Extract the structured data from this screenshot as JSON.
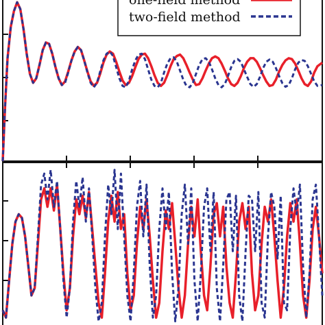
{
  "chart_data": [
    {
      "type": "line",
      "panel": "top",
      "title": "",
      "xlabel": "",
      "ylabel": "",
      "xlim": [
        0,
        100
      ],
      "ylim": [
        -2.6,
        1.0
      ],
      "grid": false,
      "legend": {
        "placement": "top-right",
        "entries": [
          "one-field method",
          "two-field method"
        ]
      },
      "series": [
        {
          "name": "one-field method",
          "color": "#e8202a",
          "style": "solid",
          "x": [
            0,
            0.7,
            1.5,
            2.5,
            3.5,
            4.5,
            5.5,
            6.5,
            7.5,
            8.5,
            9.5,
            10.5,
            11.5,
            12.5,
            13.5,
            14.5,
            15.5,
            16.5,
            17.5,
            18.5,
            19.5,
            20.5,
            21.5,
            22.5,
            23.5,
            24.5,
            25.5,
            26.5,
            27.5,
            28.5,
            29.5,
            30.5,
            31.5,
            32.5,
            33.5,
            34.5,
            35.5,
            36.5,
            37.5,
            38.5,
            39.5,
            40.5,
            41.5,
            42.5,
            43.5,
            44.5,
            45.5,
            46.5,
            47.5,
            48.5,
            49.5,
            50.5,
            51.5,
            52.5,
            53.5,
            54.5,
            55.5,
            56.5,
            57.5,
            58.5,
            59.5,
            60.5,
            61.5,
            62.5,
            63.5,
            64.5,
            65.5,
            66.5,
            67.5,
            68.5,
            69.5,
            70.5,
            71.5,
            72.5,
            73.5,
            74.5,
            75.5,
            76.5,
            77.5,
            78.5,
            79.5,
            80.5,
            81.5,
            82.5,
            83.5,
            84.5,
            85.5,
            86.5,
            87.5,
            88.5,
            89.5,
            90.5,
            91.5,
            92.5,
            93.5,
            94.5,
            95.5,
            96.5,
            97.5,
            98.5,
            100
          ],
          "values": [
            -2.6,
            -1.4,
            -0.3,
            0.4,
            0.75,
            0.95,
            0.8,
            0.35,
            -0.2,
            -0.65,
            -0.85,
            -0.75,
            -0.45,
            -0.12,
            0.05,
            0.02,
            -0.2,
            -0.5,
            -0.75,
            -0.9,
            -0.82,
            -0.6,
            -0.35,
            -0.15,
            -0.05,
            -0.12,
            -0.35,
            -0.6,
            -0.82,
            -0.92,
            -0.85,
            -0.65,
            -0.4,
            -0.22,
            -0.15,
            -0.2,
            -0.38,
            -0.6,
            -0.8,
            -0.9,
            -0.85,
            -0.7,
            -0.5,
            -0.32,
            -0.22,
            -0.2,
            -0.3,
            -0.48,
            -0.68,
            -0.85,
            -0.92,
            -0.85,
            -0.68,
            -0.48,
            -0.32,
            -0.25,
            -0.22,
            -0.3,
            -0.45,
            -0.62,
            -0.78,
            -0.9,
            -0.88,
            -0.75,
            -0.58,
            -0.42,
            -0.3,
            -0.26,
            -0.3,
            -0.42,
            -0.58,
            -0.75,
            -0.88,
            -0.92,
            -0.85,
            -0.7,
            -0.52,
            -0.38,
            -0.3,
            -0.3,
            -0.38,
            -0.52,
            -0.68,
            -0.82,
            -0.92,
            -0.9,
            -0.78,
            -0.6,
            -0.45,
            -0.35,
            -0.3,
            -0.32,
            -0.42,
            -0.58,
            -0.75,
            -0.88,
            -0.92,
            -0.82,
            -0.62,
            -0.48,
            -0.4
          ]
        },
        {
          "name": "two-field method",
          "color": "#2a3590",
          "style": "dashed",
          "x": [
            0,
            0.7,
            1.5,
            2.5,
            3.5,
            4.5,
            5.5,
            6.5,
            7.5,
            8.5,
            9.5,
            10.5,
            11.5,
            12.5,
            13.5,
            14.5,
            15.5,
            16.5,
            17.5,
            18.5,
            19.5,
            20.5,
            21.5,
            22.5,
            23.5,
            24.5,
            25.5,
            26.5,
            27.5,
            28.5,
            29.5,
            30.5,
            31.5,
            32.5,
            33.5,
            34.5,
            35.5,
            36.5,
            37.5,
            38.5,
            39.5,
            40.5,
            41.5,
            42.5,
            43.5,
            44.5,
            45.5,
            46.5,
            47.5,
            48.5,
            49.5,
            50.5,
            51.5,
            52.5,
            53.5,
            54.5,
            55.5,
            56.5,
            57.5,
            58.5,
            59.5,
            60.5,
            61.5,
            62.5,
            63.5,
            64.5,
            65.5,
            66.5,
            67.5,
            68.5,
            69.5,
            70.5,
            71.5,
            72.5,
            73.5,
            74.5,
            75.5,
            76.5,
            77.5,
            78.5,
            79.5,
            80.5,
            81.5,
            82.5,
            83.5,
            84.5,
            85.5,
            86.5,
            87.5,
            88.5,
            89.5,
            90.5,
            91.5,
            92.5,
            93.5,
            94.5,
            95.5,
            96.5,
            97.5,
            98.5,
            100
          ],
          "values": [
            -2.6,
            -1.4,
            -0.3,
            0.4,
            0.75,
            0.95,
            0.8,
            0.35,
            -0.2,
            -0.65,
            -0.85,
            -0.75,
            -0.45,
            -0.12,
            0.05,
            0.02,
            -0.2,
            -0.5,
            -0.75,
            -0.9,
            -0.85,
            -0.62,
            -0.35,
            -0.15,
            -0.05,
            -0.12,
            -0.35,
            -0.62,
            -0.85,
            -0.95,
            -0.85,
            -0.6,
            -0.35,
            -0.2,
            -0.15,
            -0.25,
            -0.5,
            -0.75,
            -0.92,
            -0.95,
            -0.8,
            -0.55,
            -0.35,
            -0.22,
            -0.2,
            -0.32,
            -0.55,
            -0.78,
            -0.92,
            -0.95,
            -0.85,
            -0.62,
            -0.42,
            -0.3,
            -0.28,
            -0.38,
            -0.58,
            -0.78,
            -0.92,
            -0.95,
            -0.85,
            -0.65,
            -0.45,
            -0.32,
            -0.3,
            -0.38,
            -0.55,
            -0.75,
            -0.9,
            -0.95,
            -0.88,
            -0.7,
            -0.5,
            -0.36,
            -0.32,
            -0.38,
            -0.55,
            -0.72,
            -0.88,
            -0.94,
            -0.88,
            -0.72,
            -0.52,
            -0.38,
            -0.33,
            -0.38,
            -0.52,
            -0.7,
            -0.86,
            -0.94,
            -0.9,
            -0.75,
            -0.55,
            -0.4,
            -0.34,
            -0.36,
            -0.48,
            -0.65,
            -0.82,
            -0.92,
            -0.9
          ]
        }
      ]
    },
    {
      "type": "line",
      "panel": "bottom",
      "title": "",
      "xlabel": "",
      "ylabel": "",
      "xlim": [
        0,
        100
      ],
      "ylim": [
        -1.0,
        1.2
      ],
      "grid": false,
      "series": [
        {
          "name": "one-field method",
          "color": "#e8202a",
          "style": "solid",
          "x": [
            0,
            1,
            2,
            3,
            4,
            5,
            6,
            7,
            8,
            9,
            10,
            11,
            12,
            13,
            14,
            15,
            16,
            17,
            18,
            19,
            20,
            21,
            22,
            23,
            24,
            25,
            26,
            27,
            28,
            29,
            30,
            31,
            32,
            33,
            34,
            35,
            36,
            37,
            38,
            39,
            40,
            41,
            42,
            43,
            44,
            45,
            46,
            47,
            48,
            49,
            50,
            51,
            52,
            53,
            54,
            55,
            56,
            57,
            58,
            59,
            60,
            61,
            62,
            63,
            64,
            65,
            66,
            67,
            68,
            69,
            70,
            71,
            72,
            73,
            74,
            75,
            76,
            77,
            78,
            79,
            80,
            81,
            82,
            83,
            84,
            85,
            86,
            87,
            88,
            89,
            90,
            91,
            92,
            93,
            94,
            95,
            96,
            97,
            98,
            99,
            100
          ],
          "values": [
            -0.8,
            -0.9,
            -0.4,
            0.1,
            0.4,
            0.5,
            0.45,
            0.2,
            -0.2,
            -0.6,
            -0.5,
            0.1,
            0.7,
            0.85,
            0.6,
            0.85,
            0.55,
            0.9,
            0.3,
            -0.3,
            -0.8,
            -0.5,
            0.2,
            0.7,
            0.5,
            0.75,
            0.45,
            0.8,
            0.3,
            -0.2,
            -0.7,
            -0.9,
            -0.3,
            0.4,
            0.75,
            0.4,
            0.8,
            0.3,
            0.5,
            -0.3,
            -0.8,
            -0.6,
            0.1,
            0.6,
            0.3,
            0.7,
            0.2,
            -0.4,
            -0.9,
            -0.7,
            0.0,
            0.55,
            0.3,
            0.65,
            0.1,
            -0.5,
            -0.9,
            -0.6,
            0.1,
            0.6,
            0.2,
            0.7,
            0.0,
            -0.6,
            -0.8,
            -0.2,
            0.5,
            0.65,
            0.2,
            0.6,
            -0.2,
            -0.7,
            -0.9,
            -0.3,
            0.4,
            0.65,
            0.3,
            0.6,
            -0.3,
            -0.8,
            -0.6,
            0.1,
            0.6,
            0.4,
            0.7,
            0.2,
            -0.4,
            -0.9,
            -0.5,
            0.2,
            0.65,
            0.4,
            0.7,
            0.1,
            -0.6,
            -0.9,
            -0.4,
            0.3,
            0.6,
            0.2,
            -0.3
          ]
        },
        {
          "name": "two-field method",
          "color": "#2a3590",
          "style": "dashed",
          "x": [
            0,
            1,
            2,
            3,
            4,
            5,
            6,
            7,
            8,
            9,
            10,
            11,
            12,
            13,
            14,
            15,
            16,
            17,
            18,
            19,
            20,
            21,
            22,
            23,
            24,
            25,
            26,
            27,
            28,
            29,
            30,
            31,
            32,
            33,
            34,
            35,
            36,
            37,
            38,
            39,
            40,
            41,
            42,
            43,
            44,
            45,
            46,
            47,
            48,
            49,
            50,
            51,
            52,
            53,
            54,
            55,
            56,
            57,
            58,
            59,
            60,
            61,
            62,
            63,
            64,
            65,
            66,
            67,
            68,
            69,
            70,
            71,
            72,
            73,
            74,
            75,
            76,
            77,
            78,
            79,
            80,
            81,
            82,
            83,
            84,
            85,
            86,
            87,
            88,
            89,
            90,
            91,
            92,
            93,
            94,
            95,
            96,
            97,
            98,
            99,
            100
          ],
          "values": [
            -0.8,
            -0.9,
            -0.4,
            0.1,
            0.4,
            0.5,
            0.45,
            0.2,
            -0.2,
            -0.6,
            -0.5,
            0.2,
            0.9,
            1.05,
            0.7,
            1.1,
            0.6,
            0.95,
            0.3,
            -0.4,
            -0.9,
            -0.5,
            0.4,
            0.95,
            0.6,
            1.0,
            0.4,
            0.85,
            0.2,
            -0.5,
            -0.95,
            -0.7,
            0.2,
            0.9,
            0.5,
            1.1,
            0.3,
            1.05,
            0.2,
            -0.6,
            -0.95,
            -0.3,
            0.6,
            0.95,
            0.2,
            0.9,
            -0.2,
            -0.9,
            -0.6,
            0.3,
            0.85,
            0.3,
            0.8,
            -0.3,
            -0.95,
            -0.5,
            0.5,
            0.9,
            0.1,
            0.85,
            -0.4,
            -0.95,
            -0.3,
            0.6,
            0.85,
            0.0,
            0.8,
            -0.5,
            -0.95,
            -0.2,
            0.7,
            0.8,
            0.0,
            0.75,
            -0.6,
            -0.95,
            0.0,
            0.75,
            0.7,
            0.0,
            0.8,
            -0.7,
            -0.9,
            0.2,
            0.8,
            0.6,
            -0.1,
            0.75,
            -0.7,
            -0.8,
            0.3,
            0.85,
            0.5,
            0.9,
            -0.2,
            -0.9,
            -0.3,
            0.7,
            0.9,
            0.2,
            -0.6
          ]
        }
      ]
    }
  ],
  "legend": {
    "entry_1": "one-field method",
    "entry_2": "two-field method"
  }
}
